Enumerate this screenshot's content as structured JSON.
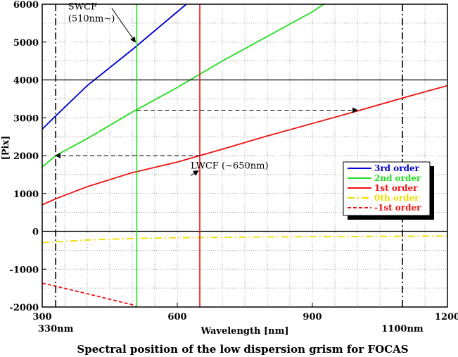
{
  "chart_data": {
    "type": "line",
    "title": "Spectral position of the low dispersion grism for FOCAS",
    "xlabel": "Wavelength [nm]",
    "ylabel": "[Pix]",
    "xlim": [
      300,
      1200
    ],
    "ylim": [
      -2000,
      6000
    ],
    "x_ticks": [
      300,
      600,
      900,
      1200
    ],
    "y_ticks": [
      -2000,
      -1000,
      0,
      1000,
      2000,
      3000,
      4000,
      5000,
      6000
    ],
    "grid": true,
    "legend_position": "right",
    "series": [
      {
        "name": "3rd order",
        "color": "#0000cc",
        "style": "solid",
        "x": [
          300,
          330,
          400,
          500,
          510,
          600,
          620
        ],
        "y": [
          2700,
          3050,
          3850,
          4800,
          4900,
          5800,
          6000
        ]
      },
      {
        "name": "2nd order",
        "color": "#22dd22",
        "style": "solid",
        "x": [
          300,
          330,
          400,
          500,
          600,
          650,
          700,
          800,
          900,
          925
        ],
        "y": [
          1700,
          2000,
          2450,
          3150,
          3800,
          4150,
          4500,
          5150,
          5800,
          6000
        ]
      },
      {
        "name": "1st order",
        "color": "#ee1111",
        "style": "solid",
        "x": [
          300,
          330,
          400,
          500,
          600,
          650,
          700,
          800,
          900,
          1000,
          1100,
          1200
        ],
        "y": [
          700,
          860,
          1180,
          1550,
          1830,
          2000,
          2170,
          2520,
          2850,
          3180,
          3520,
          3850
        ]
      },
      {
        "name": "0th order",
        "color": "#eedd00",
        "style": "dashdot",
        "x": [
          300,
          400,
          500,
          600,
          700,
          800,
          900,
          1000,
          1100,
          1200
        ],
        "y": [
          -300,
          -230,
          -190,
          -170,
          -160,
          -150,
          -140,
          -135,
          -130,
          -125
        ]
      },
      {
        "name": "-1st order",
        "color": "#ee1111",
        "style": "dashed",
        "x": [
          300,
          330,
          400,
          500,
          510
        ],
        "y": [
          -1370,
          -1450,
          -1650,
          -1940,
          -2000
        ]
      }
    ],
    "vertical_lines": [
      {
        "x": 330,
        "color": "#000000",
        "style": "dashdot",
        "label": "330nm"
      },
      {
        "x": 1100,
        "color": "#000000",
        "style": "dashdot",
        "label": "1100nm"
      },
      {
        "x": 510,
        "color": "#22dd22",
        "style": "solid",
        "label": ""
      },
      {
        "x": 650,
        "color": "#ee1111",
        "style": "solid",
        "label": ""
      }
    ],
    "horizontal_lines": [
      {
        "y": 4000,
        "color": "#000000",
        "style": "solid"
      },
      {
        "y": 0,
        "color": "#000000",
        "style": "solid"
      }
    ],
    "dashed_arrows": [
      {
        "x1": 510,
        "y1": 3200,
        "x2": 1000,
        "y2": 3200
      },
      {
        "x1": 650,
        "y1": 2000,
        "x2": 330,
        "y2": 2000
      }
    ],
    "annotations": [
      {
        "text_lines": [
          "SWCF",
          "(510nm∼)"
        ],
        "x": 420,
        "y": 5450,
        "arrow_to_x": 510,
        "arrow_to_y": 5000
      },
      {
        "text_lines": [
          "LWCF (∼650nm)"
        ],
        "x": 700,
        "y": 1250,
        "arrow_to_x": 650,
        "arrow_to_y": 1600
      }
    ]
  }
}
